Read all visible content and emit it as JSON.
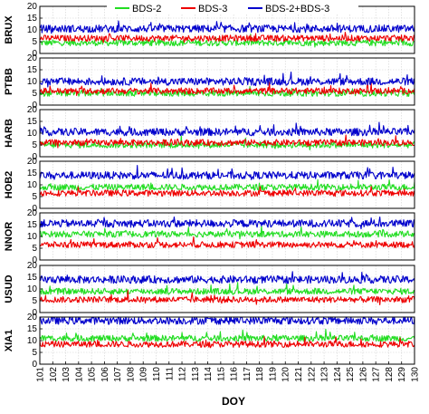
{
  "chart_data": {
    "type": "line",
    "legend": {
      "placement": "top-center",
      "entries": [
        {
          "name": "BDS-2",
          "color": "#22dd22"
        },
        {
          "name": "BDS-3",
          "color": "#ee0000"
        },
        {
          "name": "BDS-2+BDS-3",
          "color": "#0000cc"
        }
      ]
    },
    "xlabel": "DOY",
    "xlim": [
      101,
      130
    ],
    "x_ticks": [
      "101",
      "102",
      "103",
      "104",
      "105",
      "106",
      "107",
      "108",
      "109",
      "110",
      "111",
      "112",
      "113",
      "114",
      "115",
      "116",
      "117",
      "118",
      "119",
      "120",
      "121",
      "122",
      "123",
      "124",
      "125",
      "126",
      "127",
      "128",
      "129",
      "130"
    ],
    "y_ticks": [
      "0",
      "5",
      "10",
      "15",
      "20"
    ],
    "ylim": [
      0,
      20
    ],
    "grid": true,
    "panels": [
      {
        "label": "BRUX",
        "series": [
          {
            "name": "BDS-2",
            "mean": 4.5
          },
          {
            "name": "BDS-3",
            "mean": 6.5
          },
          {
            "name": "BDS-2+BDS-3",
            "mean": 10.5
          }
        ]
      },
      {
        "label": "PTBB",
        "series": [
          {
            "name": "BDS-2",
            "mean": 5
          },
          {
            "name": "BDS-3",
            "mean": 6
          },
          {
            "name": "BDS-2+BDS-3",
            "mean": 10
          }
        ]
      },
      {
        "label": "HARB",
        "series": [
          {
            "name": "BDS-2",
            "mean": 5
          },
          {
            "name": "BDS-3",
            "mean": 6
          },
          {
            "name": "BDS-2+BDS-3",
            "mean": 10.5
          }
        ]
      },
      {
        "label": "HOB2",
        "series": [
          {
            "name": "BDS-2",
            "mean": 9
          },
          {
            "name": "BDS-3",
            "mean": 6.5
          },
          {
            "name": "BDS-2+BDS-3",
            "mean": 14
          }
        ]
      },
      {
        "label": "NNOR",
        "series": [
          {
            "name": "BDS-2",
            "mean": 11
          },
          {
            "name": "BDS-3",
            "mean": 6.5
          },
          {
            "name": "BDS-2+BDS-3",
            "mean": 15.5
          }
        ]
      },
      {
        "label": "USUD",
        "series": [
          {
            "name": "BDS-2",
            "mean": 9
          },
          {
            "name": "BDS-3",
            "mean": 5.5
          },
          {
            "name": "BDS-2+BDS-3",
            "mean": 14
          }
        ]
      },
      {
        "label": "XIA1",
        "series": [
          {
            "name": "BDS-2",
            "mean": 11
          },
          {
            "name": "BDS-3",
            "mean": 8.5
          },
          {
            "name": "BDS-2+BDS-3",
            "mean": 18.5
          }
        ]
      }
    ]
  }
}
